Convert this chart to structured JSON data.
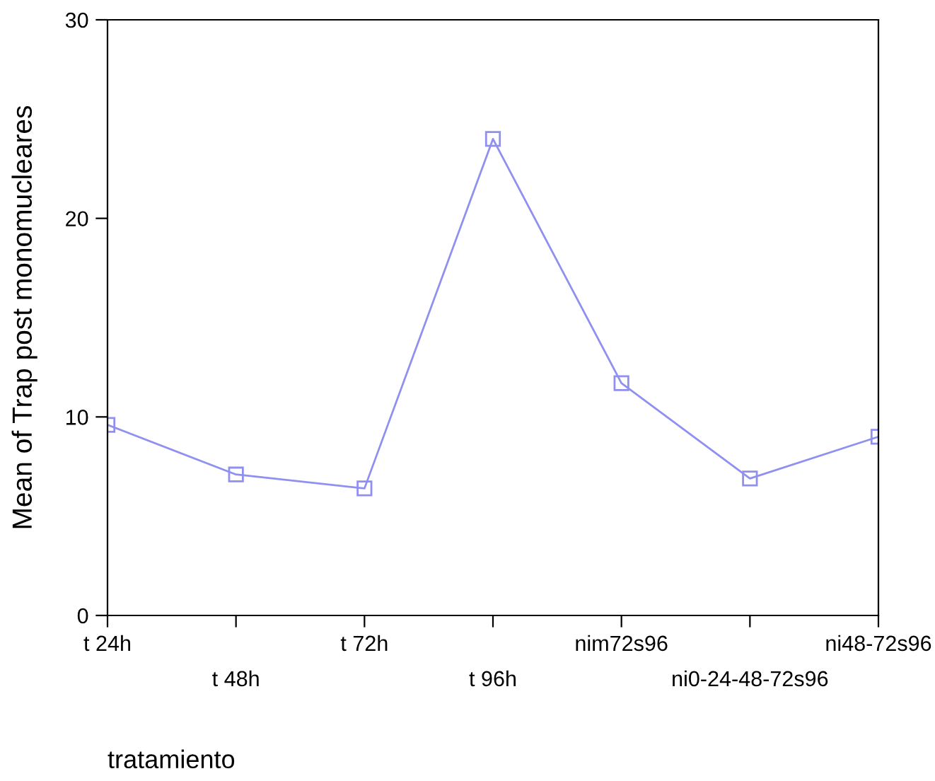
{
  "chart_data": {
    "type": "line",
    "xlabel": "tratamiento",
    "ylabel": "Mean of Trap post monomucleares",
    "categories": [
      "t 24h",
      "t 48h",
      "t 72h",
      "t 96h",
      "nim72s96",
      "ni0-24-48-72s96",
      "ni48-72s96"
    ],
    "series": [
      {
        "color": "#9090f0",
        "values": [
          9.6,
          7.1,
          6.4,
          24.0,
          11.7,
          6.9,
          9.0
        ]
      }
    ],
    "ylim": [
      0,
      30
    ],
    "yticks": [
      0,
      10,
      20,
      30
    ],
    "marker": "square",
    "line_style": "solid",
    "grid": false,
    "legend": false
  }
}
